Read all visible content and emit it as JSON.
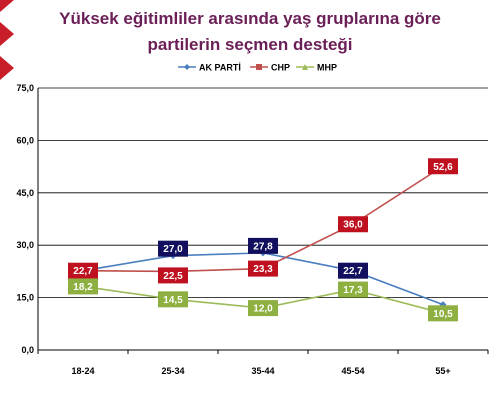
{
  "chart_data": {
    "type": "line",
    "title_lines": [
      "Yüksek eğitimliler arasında yaş gruplarına göre",
      "partilerin seçmen desteği"
    ],
    "categories": [
      "18-24",
      "25-34",
      "35-44",
      "45-54",
      "55+"
    ],
    "ylim": [
      0,
      75
    ],
    "yticks": [
      "0,0",
      "15,0",
      "30,0",
      "45,0",
      "60,0",
      "75,0"
    ],
    "grid": true,
    "legend_position": "top",
    "series": [
      {
        "name": "AK PARTİ",
        "values": [
          22.7,
          27.0,
          27.8,
          22.7,
          13.0
        ],
        "labels": [
          "",
          "27,0",
          "27,8",
          "22,7",
          ""
        ],
        "line_color": "#4a7ebf",
        "label_bg": "#12105e"
      },
      {
        "name": "CHP",
        "values": [
          22.7,
          22.5,
          23.3,
          36.0,
          52.6
        ],
        "labels": [
          "22,7",
          "22,5",
          "23,3",
          "36,0",
          "52,6"
        ],
        "line_color": "#c0504d",
        "label_bg": "#bf1020"
      },
      {
        "name": "MHP",
        "values": [
          18.2,
          14.5,
          12.0,
          17.3,
          10.5
        ],
        "labels": [
          "18,2",
          "14,5",
          "12,0",
          "17,3",
          "10,5"
        ],
        "line_color": "#9bbb59",
        "label_bg": "#8db040"
      }
    ]
  }
}
